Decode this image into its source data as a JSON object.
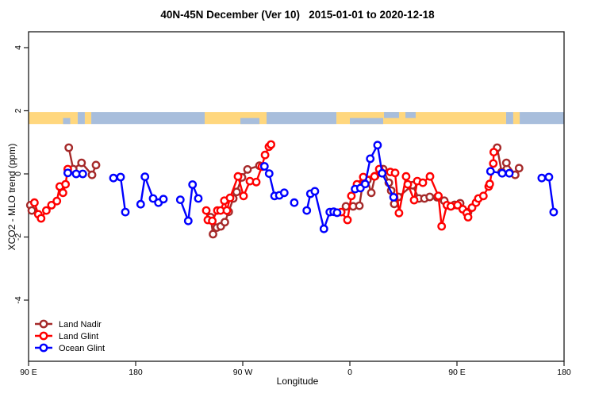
{
  "title": "40N-45N December (Ver 10)   2015-01-01 to 2020-12-18",
  "chart_data": {
    "type": "line",
    "title": "40N-45N December (Ver 10)   2015-01-01 to 2020-12-18",
    "xlabel": "Longitude",
    "ylabel": "XCO2 - MLO trend (ppm)",
    "x_axis": {
      "range": [
        90,
        540
      ],
      "ticks": [
        90,
        180,
        270,
        360,
        450,
        540
      ],
      "tick_labels": [
        "90 E",
        "180",
        "90 W",
        "0",
        "90 E",
        "180"
      ]
    },
    "y_axis": {
      "range": [
        -5.95,
        4.5
      ],
      "ticks": [
        -4,
        -2,
        0,
        2,
        4
      ],
      "tick_labels": [
        "-4",
        "-2",
        "0",
        "2",
        "4"
      ]
    },
    "map_strip": {
      "description": "land/ocean strip for latitude band 40N-45N",
      "value_range": [
        1.58,
        1.96
      ],
      "land_color": "#FFD77E",
      "ocean_color": "#A8BEDC",
      "segments": [
        {
          "type": "land",
          "from": 90,
          "to": 131.3
        },
        {
          "type": "ocean",
          "from": 131.3,
          "to": 137.3
        },
        {
          "type": "land",
          "from": 137.3,
          "to": 142.7
        },
        {
          "type": "ocean",
          "from": 142.7,
          "to": 238
        },
        {
          "type": "land",
          "from": 238,
          "to": 290
        },
        {
          "type": "ocean",
          "from": 290,
          "to": 348.7
        },
        {
          "type": "land",
          "from": 348.7,
          "to": 491.3
        },
        {
          "type": "ocean",
          "from": 491.3,
          "to": 497.3
        },
        {
          "type": "land",
          "from": 497.3,
          "to": 502.7
        },
        {
          "type": "ocean",
          "from": 502.7,
          "to": 540
        }
      ],
      "patches": [
        {
          "type": "ocean",
          "from": 119,
          "to": 125,
          "half": "bottom"
        },
        {
          "type": "ocean",
          "from": 268,
          "to": 284,
          "half": "bottom"
        },
        {
          "type": "ocean",
          "from": 360,
          "to": 388,
          "half": "bottom"
        },
        {
          "type": "ocean",
          "from": 388.7,
          "to": 401.3,
          "half": "top"
        },
        {
          "type": "ocean",
          "from": 406.7,
          "to": 415.3,
          "half": "top"
        }
      ]
    },
    "series": [
      {
        "name": "Land Nadir",
        "color": "#A52A2A",
        "segments": [
          [
            [
              91.5,
              -0.99
            ],
            [
              92.7,
              -1.16
            ]
          ],
          [
            [
              123.8,
              0.83
            ],
            [
              127.5,
              0.15
            ],
            [
              134.5,
              0.35
            ],
            [
              143.3,
              -0.03
            ],
            [
              146.7,
              0.28
            ]
          ],
          [
            [
              243,
              -1.37
            ],
            [
              245,
              -1.91
            ],
            [
              248.2,
              -1.7
            ],
            [
              251.5,
              -1.66
            ],
            [
              254.9,
              -1.53
            ],
            [
              258.2,
              -1.2
            ],
            [
              262,
              -0.78
            ],
            [
              264.9,
              -0.57
            ],
            [
              269.3,
              -0.11
            ],
            [
              274,
              0.14
            ],
            [
              284,
              0.26
            ]
          ],
          [
            [
              356.7,
              -1.03
            ],
            [
              362.7,
              -1.03
            ],
            [
              368,
              -1.01
            ],
            [
              370.7,
              -0.33
            ],
            [
              374.7,
              -0.19
            ],
            [
              378,
              -0.6
            ],
            [
              381.3,
              -0.07
            ],
            [
              388,
              0.15
            ],
            [
              392.7,
              -0.28
            ],
            [
              394.7,
              -0.53
            ],
            [
              397.3,
              -0.95
            ],
            [
              400.7,
              -0.73
            ],
            [
              412.7,
              -0.36
            ],
            [
              418,
              -0.78
            ],
            [
              422.7,
              -0.78
            ],
            [
              427.1,
              -0.73
            ],
            [
              433.3,
              -0.74
            ],
            [
              439.3,
              -0.85
            ]
          ],
          [
            [
              448,
              -0.98
            ],
            [
              452.7,
              -0.93
            ],
            [
              459.3,
              -1.21
            ]
          ],
          [
            [
              483.8,
              0.83
            ],
            [
              487.5,
              0.06
            ],
            [
              491.5,
              0.35
            ],
            [
              498.9,
              -0.03
            ],
            [
              502.2,
              0.18
            ]
          ]
        ]
      },
      {
        "name": "Land Glint",
        "color": "#FF0000",
        "segments": [
          [
            [
              94.9,
              -0.91
            ],
            [
              98.2,
              -1.28
            ],
            [
              100.5,
              -1.41
            ],
            [
              104.9,
              -1.16
            ],
            [
              109.3,
              -0.99
            ],
            [
              113.8,
              -0.86
            ],
            [
              116.2,
              -0.4
            ],
            [
              118.9,
              -0.6
            ],
            [
              121.1,
              -0.33
            ],
            [
              122.9,
              0.15
            ]
          ],
          [
            [
              239.3,
              -1.16
            ],
            [
              240.7,
              -1.46
            ],
            [
              244.4,
              -1.49
            ],
            [
              248.7,
              -1.16
            ],
            [
              251.3,
              -1.16
            ],
            [
              254.5,
              -0.85
            ],
            [
              256.7,
              -1.16
            ],
            [
              259.3,
              -0.76
            ],
            [
              266,
              -0.08
            ],
            [
              270.7,
              -0.7
            ],
            [
              276,
              -0.23
            ],
            [
              281.3,
              -0.26
            ],
            [
              286,
              0.23
            ],
            [
              288.7,
              0.6
            ],
            [
              292,
              0.86
            ],
            [
              293.7,
              0.93
            ]
          ],
          [
            [
              352.7,
              -1.21
            ],
            [
              358,
              -1.46
            ],
            [
              361.3,
              -0.7
            ],
            [
              366,
              -0.33
            ],
            [
              371.3,
              -0.1
            ],
            [
              380.7,
              -0.08
            ],
            [
              384.7,
              0.15
            ],
            [
              394,
              0.06
            ],
            [
              398,
              0.03
            ],
            [
              401.3,
              -1.24
            ],
            [
              407.3,
              -0.08
            ],
            [
              408.7,
              -0.33
            ],
            [
              414,
              -0.83
            ],
            [
              416.7,
              -0.23
            ],
            [
              421.3,
              -0.28
            ],
            [
              427.3,
              -0.08
            ],
            [
              434.4,
              -0.7
            ],
            [
              437.1,
              -1.66
            ],
            [
              441.5,
              -0.99
            ],
            [
              444.9,
              -1.03
            ],
            [
              450.5,
              -0.99
            ],
            [
              454.9,
              -1.12
            ],
            [
              458.2,
              -1.24
            ],
            [
              459.3,
              -1.37
            ],
            [
              462.7,
              -1.07
            ],
            [
              466,
              -0.91
            ],
            [
              468,
              -0.78
            ],
            [
              472.2,
              -0.7
            ],
            [
              476.7,
              -0.4
            ],
            [
              477.5,
              -0.32
            ],
            [
              480.5,
              0.33
            ],
            [
              480.9,
              0.69
            ]
          ]
        ]
      },
      {
        "name": "Ocean Glint",
        "color": "#0000FF",
        "segments": [
          [
            [
              122.9,
              0.03
            ],
            [
              130,
              0
            ],
            [
              135.5,
              0
            ]
          ],
          [
            [
              161.3,
              -0.13
            ],
            [
              167.3,
              -0.1
            ],
            [
              171.3,
              -1.21
            ]
          ],
          [
            [
              184.2,
              -0.96
            ],
            [
              187.8,
              -0.09
            ],
            [
              194.7,
              -0.78
            ],
            [
              199.1,
              -0.91
            ],
            [
              203.3,
              -0.8
            ]
          ],
          [
            [
              217.5,
              -0.82
            ],
            [
              224.2,
              -1.49
            ],
            [
              227.8,
              -0.34
            ],
            [
              232.7,
              -0.78
            ]
          ],
          [
            [
              288.2,
              0.24
            ],
            [
              292.2,
              0.01
            ],
            [
              296.7,
              -0.7
            ],
            [
              300.7,
              -0.68
            ]
          ],
          [
            [
              304.9,
              -0.6
            ]
          ],
          [
            [
              313.3,
              -0.91
            ]
          ],
          [
            [
              323.8,
              -1.16
            ],
            [
              326.9,
              -0.63
            ],
            [
              330.6,
              -0.55
            ],
            [
              338.2,
              -1.74
            ],
            [
              343.1,
              -1.21
            ],
            [
              346.4,
              -1.2
            ],
            [
              349.3,
              -1.23
            ]
          ],
          [
            [
              364.4,
              -0.48
            ],
            [
              368.9,
              -0.45
            ],
            [
              372.9,
              -0.32
            ],
            [
              377.1,
              0.48
            ],
            [
              383.3,
              0.91
            ],
            [
              387.1,
              0.02
            ],
            [
              396.7,
              -0.74
            ]
          ],
          [
            [
              478.2,
              0.08
            ],
            [
              488,
              0.02
            ],
            [
              494,
              0.02
            ]
          ],
          [
            [
              521.3,
              -0.13
            ],
            [
              527.3,
              -0.1
            ],
            [
              531.3,
              -1.21
            ]
          ]
        ]
      }
    ],
    "legend": {
      "position": "bottom-left",
      "items": [
        {
          "label": "Land Nadir",
          "color": "#A52A2A"
        },
        {
          "label": "Land Glint",
          "color": "#FF0000"
        },
        {
          "label": "Ocean Glint",
          "color": "#0000FF"
        }
      ]
    }
  }
}
